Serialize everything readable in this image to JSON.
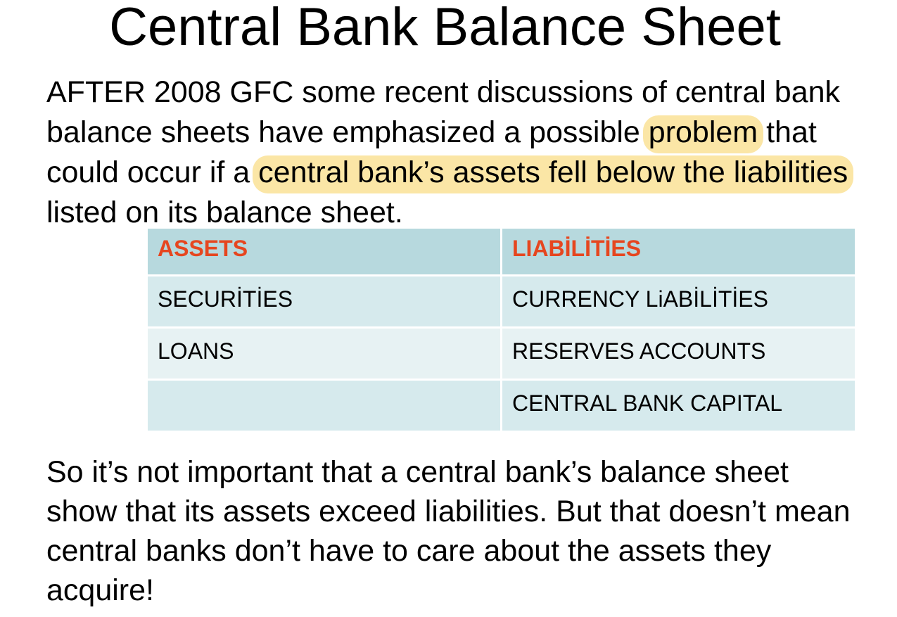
{
  "title": "Central Bank Balance Sheet",
  "intro": {
    "part1": "AFTER 2008 GFC some recent discussions of central bank balance sheets have emphasized a possible ",
    "highlight1": "problem",
    "part2": " that could occur if a ",
    "highlight2": "central bank’s assets fell below the liabilities",
    "part3": " listed on its balance sheet."
  },
  "table": {
    "headers": [
      "ASSETS",
      "LIABİLİTİES"
    ],
    "rows": [
      [
        "SECURİTİES",
        "CURRENCY LiABİLİTİES"
      ],
      [
        "LOANS",
        "RESERVES ACCOUNTS"
      ],
      [
        "",
        "CENTRAL BANK CAPITAL"
      ]
    ]
  },
  "conclusion": "So it’s not important that a central bank’s balance sheet show that its assets exceed liabilities. But that doesn’t mean central banks don’t have to care about the assets they acquire!",
  "colors": {
    "header_text": "#e6461f",
    "header_bg": "#b7d9de",
    "row_bg_dark": "#d6eaed",
    "row_bg_light": "#e7f2f3",
    "highlight": "#fbe6a6"
  }
}
